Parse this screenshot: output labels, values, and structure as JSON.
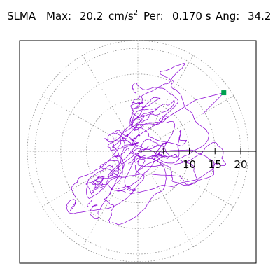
{
  "header": {
    "station": "SLMA",
    "max_label": "Max:",
    "max_value": "20.2",
    "max_unit_base": "cm/s",
    "max_unit_exp": "2",
    "period_label": "Per:",
    "period_value": "0.170 s",
    "angle_label": "Ang:",
    "angle_value": "34.2"
  },
  "chart_data": {
    "type": "scatter",
    "title": "",
    "subtitle": "",
    "projection": "polar-orbit",
    "grid": true,
    "grid_style": "dotted",
    "radial_ticks": [
      5,
      10,
      15,
      20
    ],
    "radial_tick_labels": [
      "10",
      "15",
      "20"
    ],
    "r_max": 21.5,
    "angular_grid_step_deg": 30,
    "trace_color": "#8a00d4",
    "peak_marker_color": "#00a050",
    "peak": {
      "radius": 20.2,
      "angle_deg": 34.2
    },
    "trace_seed": 7,
    "trace_samples": 2400
  }
}
